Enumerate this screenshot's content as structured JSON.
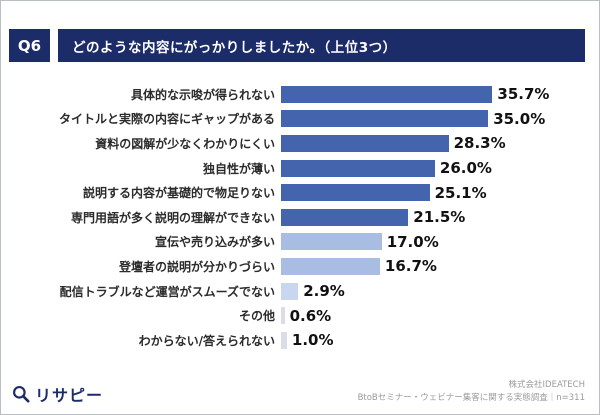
{
  "header": {
    "q_label": "Q6",
    "title": "どのような内容にがっかりしましたか。（上位3つ）"
  },
  "chart_data": {
    "type": "bar",
    "orientation": "horizontal",
    "title": "どのような内容にがっかりしましたか。（上位3つ）",
    "xlabel": "",
    "ylabel": "",
    "xlim": [
      0,
      38
    ],
    "grid": false,
    "legend": "none",
    "categories": [
      "具体的な示唆が得られない",
      "タイトルと実際の内容にギャップがある",
      "資料の図解が少なくわかりにくい",
      "独自性が薄い",
      "説明する内容が基礎的で物足りない",
      "専門用語が多く説明の理解ができない",
      "宣伝や売り込みが多い",
      "登壇者の説明が分かりづらい",
      "配信トラブルなど運営がスムーズでない",
      "その他",
      "わからない/答えられない"
    ],
    "values": [
      35.7,
      35.0,
      28.3,
      26.0,
      25.1,
      21.5,
      17.0,
      16.7,
      2.9,
      0.6,
      1.0
    ],
    "value_labels": [
      "35.7%",
      "35.0%",
      "28.3%",
      "26.0%",
      "25.1%",
      "21.5%",
      "17.0%",
      "16.7%",
      "2.9%",
      "0.6%",
      "1.0%"
    ],
    "bar_colors": [
      "#4564ae",
      "#4564ae",
      "#4564ae",
      "#4564ae",
      "#4564ae",
      "#4564ae",
      "#a9bce1",
      "#a9bce1",
      "#c9d6ef",
      "#dadde6",
      "#dadde6"
    ]
  },
  "footer": {
    "logo_text": "リサピー",
    "credit_line1": "株式会社IDEATECH",
    "credit_line2": "BtoBセミナー・ウェビナー集客に関する実態調査｜n=311"
  },
  "colors": {
    "header_navy": "#1b2c69",
    "bar_dark": "#4564ae",
    "bar_medium": "#a9bce1",
    "bar_light": "#c9d6ef",
    "bar_lightest": "#dadde6"
  }
}
